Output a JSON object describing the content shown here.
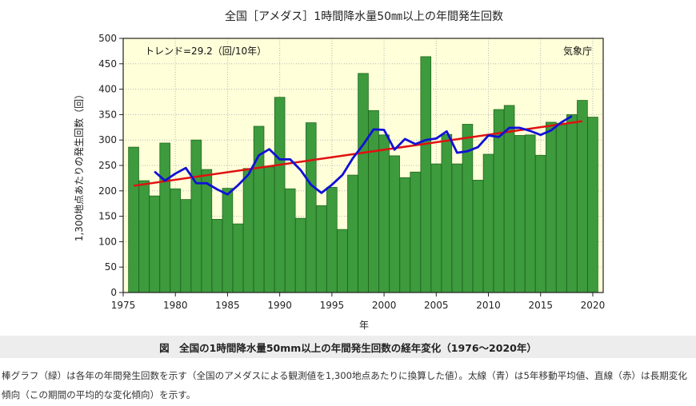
{
  "page": {
    "figure_caption": "図　全国の1時間降水量50mm以上の年間発生回数の経年変化（1976〜2020年）",
    "description": "棒グラフ（緑）は各年の年間発生回数を示す（全国のアメダスによる観測値を1,300地点あたりに換算した値）。太線（青）は5年移動平均値、直線（赤）は長期変化傾向（この期間の平均的な変化傾向）を示す。"
  },
  "chart_data": {
    "type": "bar",
    "title": "全国［アメダス］1時間降水量50㎜以上の年間発生回数",
    "xlabel": "年",
    "ylabel": "1,300地点あたりの発生回数（回）",
    "trend_label": "トレンド=29.2（回/10年）",
    "source_label": "気象庁",
    "ylim": [
      0,
      500
    ],
    "xlim": [
      1975,
      2021
    ],
    "yticks": [
      0,
      50,
      100,
      150,
      200,
      250,
      300,
      350,
      400,
      450,
      500
    ],
    "xticks": [
      1975,
      1980,
      1985,
      1990,
      1995,
      2000,
      2005,
      2010,
      2015,
      2020
    ],
    "years": [
      1976,
      1977,
      1978,
      1979,
      1980,
      1981,
      1982,
      1983,
      1984,
      1985,
      1986,
      1987,
      1988,
      1989,
      1990,
      1991,
      1992,
      1993,
      1994,
      1995,
      1996,
      1997,
      1998,
      1999,
      2000,
      2001,
      2002,
      2003,
      2004,
      2005,
      2006,
      2007,
      2008,
      2009,
      2010,
      2011,
      2012,
      2013,
      2014,
      2015,
      2016,
      2017,
      2018,
      2019,
      2020
    ],
    "values": [
      286,
      220,
      190,
      294,
      204,
      183,
      300,
      242,
      144,
      205,
      135,
      244,
      327,
      247,
      384,
      204,
      146,
      334,
      171,
      207,
      124,
      231,
      431,
      358,
      310,
      269,
      226,
      237,
      464,
      253,
      311,
      253,
      331,
      221,
      272,
      360,
      368,
      309,
      310,
      270,
      335,
      333,
      350,
      378,
      345
    ],
    "moving_average": {
      "name": "5年移動平均",
      "years": [
        1978,
        1979,
        1980,
        1981,
        1982,
        1983,
        1984,
        1985,
        1986,
        1987,
        1988,
        1989,
        1990,
        1991,
        1992,
        1993,
        1994,
        1995,
        1996,
        1997,
        1998,
        1999,
        2000,
        2001,
        2002,
        2003,
        2004,
        2005,
        2006,
        2007,
        2008,
        2009,
        2010,
        2011,
        2012,
        2013,
        2014,
        2015,
        2016,
        2017,
        2018
      ],
      "values": [
        238,
        220,
        234,
        245,
        215,
        215,
        203,
        193,
        211,
        232,
        270,
        282,
        262,
        262,
        241,
        212,
        196,
        212,
        231,
        264,
        291,
        321,
        320,
        281,
        302,
        292,
        300,
        303,
        317,
        275,
        278,
        286,
        309,
        306,
        324,
        324,
        318,
        310,
        319,
        335,
        347
      ]
    },
    "trend_line": {
      "name": "長期変化傾向",
      "start": {
        "year": 1976,
        "value": 210
      },
      "end": {
        "year": 2019,
        "value": 337
      }
    },
    "colors": {
      "bar": "#3d9a3d",
      "bar_edge": "#1f6a1f",
      "plot_bg": "#ffffd9",
      "moving_average": "#1010d8",
      "trend": "#e01010"
    }
  }
}
